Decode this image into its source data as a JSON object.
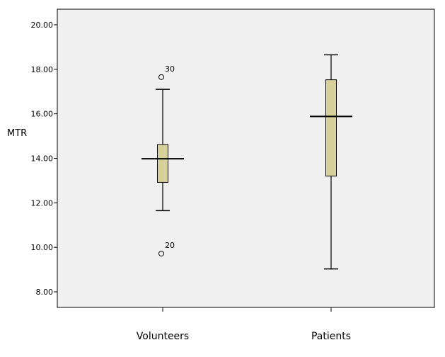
{
  "chart_data": {
    "type": "boxplot",
    "title": "",
    "xlabel": "",
    "ylabel": "MTR",
    "ylim": [
      7.3,
      20.7
    ],
    "yticks": [
      "8.00",
      "10.00",
      "12.00",
      "14.00",
      "16.00",
      "18.00",
      "20.00"
    ],
    "tick_values": [
      8,
      10,
      12,
      14,
      16,
      18,
      20
    ],
    "categories": [
      "Volunteers",
      "Patients"
    ],
    "boxes": [
      {
        "name": "Volunteers",
        "whisker_low": 11.65,
        "q1": 12.92,
        "median": 13.98,
        "q3": 14.62,
        "whisker_high": 17.1,
        "outliers": [
          {
            "value": 17.65,
            "label": "30"
          },
          {
            "value": 9.72,
            "label": "20"
          }
        ]
      },
      {
        "name": "Patients",
        "whisker_low": 9.03,
        "q1": 13.2,
        "median": 15.88,
        "q3": 17.53,
        "whisker_high": 18.65,
        "outliers": []
      }
    ],
    "colors": {
      "plot_background": "#f0f0f0",
      "box_fill": "#d6d09a",
      "stroke": "#000000"
    },
    "grid": false,
    "legend": "none"
  }
}
